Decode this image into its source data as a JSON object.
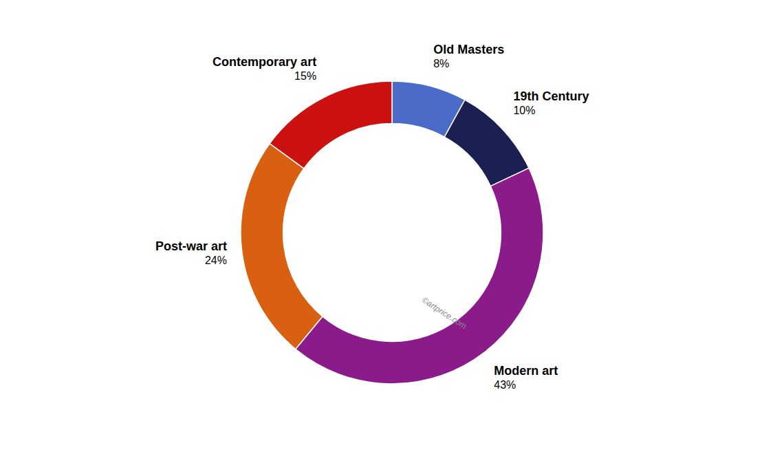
{
  "chart_data": {
    "type": "donut",
    "categories": [
      "Old Masters",
      "19th Century",
      "Modern art",
      "Post-war art",
      "Contemporary art"
    ],
    "values": [
      8,
      10,
      43,
      24,
      15
    ],
    "value_labels": [
      "8%",
      "10%",
      "43%",
      "24%",
      "15%"
    ],
    "colors": [
      "#4A6BC8",
      "#1C1F52",
      "#8B1A8B",
      "#D96010",
      "#CC1111"
    ],
    "data_labels": true,
    "annotations": [
      "©artprice.com"
    ]
  }
}
